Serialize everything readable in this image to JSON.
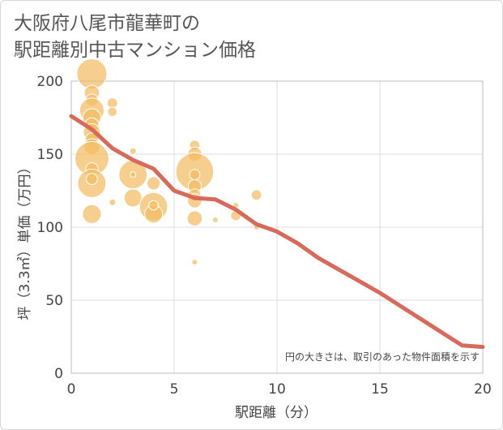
{
  "title_lines": [
    "大阪府八尾市龍華町の",
    "駅距離別中古マンション価格"
  ],
  "chart_data": {
    "type": "scatter",
    "title": "大阪府八尾市龍華町の駅距離別中古マンション価格",
    "xlabel": "駅距離（分）",
    "ylabel": "坪（3.3㎡）単価（万円）",
    "xlim": [
      0,
      20
    ],
    "ylim": [
      0,
      200
    ],
    "x_ticks": [
      0,
      5,
      10,
      15,
      20
    ],
    "y_ticks": [
      0,
      50,
      100,
      150,
      200
    ],
    "grid": true,
    "annotation": "円の大きさは、取引のあった物件面積を示す",
    "points": [
      {
        "x": 1,
        "y": 205,
        "size": 3.2
      },
      {
        "x": 1,
        "y": 192,
        "size": 1.6
      },
      {
        "x": 1,
        "y": 187,
        "size": 1.3
      },
      {
        "x": 1,
        "y": 180,
        "size": 2.6
      },
      {
        "x": 1,
        "y": 175,
        "size": 1.9
      },
      {
        "x": 1,
        "y": 170,
        "size": 1.5
      },
      {
        "x": 1,
        "y": 165,
        "size": 1.8
      },
      {
        "x": 1,
        "y": 160,
        "size": 1.4
      },
      {
        "x": 1,
        "y": 155,
        "size": 1.7
      },
      {
        "x": 1,
        "y": 147,
        "size": 3.6
      },
      {
        "x": 1,
        "y": 140,
        "size": 1.3
      },
      {
        "x": 1,
        "y": 130,
        "size": 3.0
      },
      {
        "x": 1,
        "y": 133,
        "size": 1.2
      },
      {
        "x": 1,
        "y": 109,
        "size": 2.0
      },
      {
        "x": 2,
        "y": 185,
        "size": 1.1
      },
      {
        "x": 2,
        "y": 179,
        "size": 1.0
      },
      {
        "x": 2,
        "y": 117,
        "size": 0.7
      },
      {
        "x": 3,
        "y": 152,
        "size": 0.7
      },
      {
        "x": 3,
        "y": 136,
        "size": 3.0
      },
      {
        "x": 3,
        "y": 120,
        "size": 1.9
      },
      {
        "x": 3,
        "y": 136,
        "size": 0.6
      },
      {
        "x": 4,
        "y": 130,
        "size": 1.4
      },
      {
        "x": 4,
        "y": 114,
        "size": 3.0
      },
      {
        "x": 4,
        "y": 109,
        "size": 1.9
      },
      {
        "x": 4,
        "y": 115,
        "size": 1.0
      },
      {
        "x": 6,
        "y": 156,
        "size": 1.1
      },
      {
        "x": 6,
        "y": 150,
        "size": 1.5
      },
      {
        "x": 6,
        "y": 138,
        "size": 4.0
      },
      {
        "x": 6,
        "y": 136,
        "size": 1.1
      },
      {
        "x": 6,
        "y": 128,
        "size": 1.4
      },
      {
        "x": 6,
        "y": 122,
        "size": 1.3
      },
      {
        "x": 6,
        "y": 118,
        "size": 1.5
      },
      {
        "x": 6,
        "y": 106,
        "size": 1.6
      },
      {
        "x": 6,
        "y": 76,
        "size": 0.6
      },
      {
        "x": 7,
        "y": 105,
        "size": 0.6
      },
      {
        "x": 8,
        "y": 115,
        "size": 0.6
      },
      {
        "x": 8,
        "y": 108,
        "size": 1.1
      },
      {
        "x": 9,
        "y": 122,
        "size": 1.1
      },
      {
        "x": 9,
        "y": 100,
        "size": 0.6
      }
    ],
    "trend_line": {
      "x": [
        0,
        1,
        2,
        3,
        4,
        5,
        6,
        7,
        8,
        9,
        10,
        11,
        12,
        13,
        14,
        15,
        16,
        17,
        18,
        19,
        20
      ],
      "y": [
        176,
        167,
        154,
        146,
        140,
        125,
        120,
        119,
        112,
        102,
        97,
        89,
        79,
        71,
        63,
        55,
        46,
        37,
        28,
        19,
        18
      ]
    },
    "colors": {
      "bubble": "#f3bc63",
      "trend": "#d9695a",
      "grid": "#d9dee6",
      "axis": "#444444"
    }
  }
}
